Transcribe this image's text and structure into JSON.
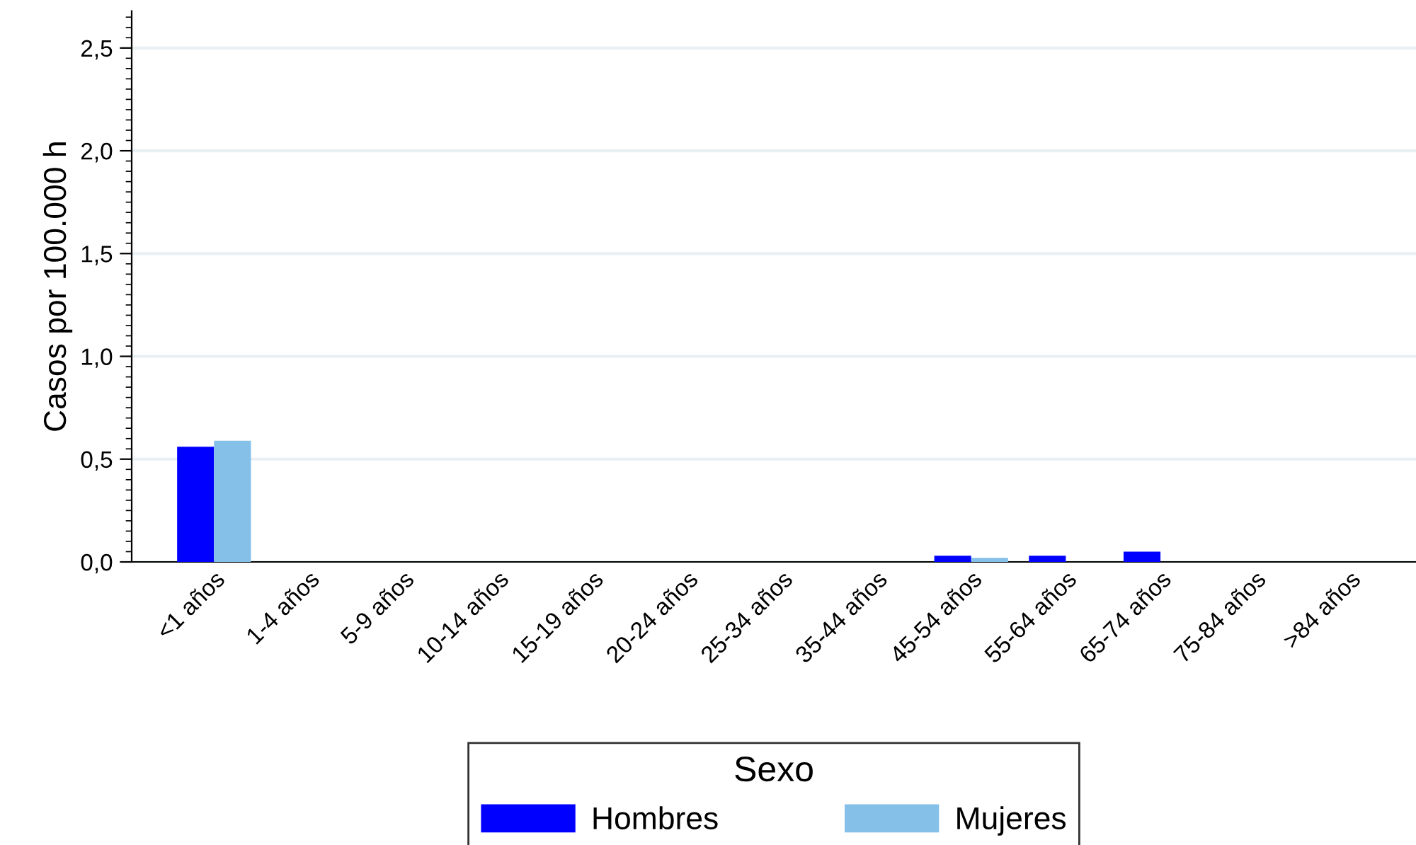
{
  "chart_data": {
    "type": "bar",
    "ylabel": "Casos por 100.000 h",
    "legend_title": "Sexo",
    "categories": [
      "<1 años",
      "1-4 años",
      "5-9 años",
      "10-14 años",
      "15-19 años",
      "20-24 años",
      "25-34 años",
      "35-44 años",
      "45-54 años",
      "55-64 años",
      "65-74 años",
      "75-84 años",
      ">84 años"
    ],
    "series": [
      {
        "name": "Hombres",
        "color": "#0000ff",
        "values": [
          0.56,
          0,
          0,
          0,
          0,
          0,
          0,
          0,
          0.03,
          0.03,
          0.05,
          0,
          0
        ]
      },
      {
        "name": "Mujeres",
        "color": "#85c0e9",
        "values": [
          0.59,
          0,
          0,
          0,
          0,
          0,
          0,
          0,
          0.02,
          0,
          0,
          0,
          0
        ]
      }
    ],
    "ylim": [
      0,
      2.68
    ],
    "yticks": [
      {
        "value": 0,
        "label": "0,0"
      },
      {
        "value": 0.5,
        "label": "0,5"
      },
      {
        "value": 1.0,
        "label": "1,0"
      },
      {
        "value": 1.5,
        "label": "1,5"
      },
      {
        "value": 2.0,
        "label": "2,0"
      },
      {
        "value": 2.5,
        "label": "2,5"
      }
    ],
    "grid": "y",
    "legend": "bottom"
  }
}
